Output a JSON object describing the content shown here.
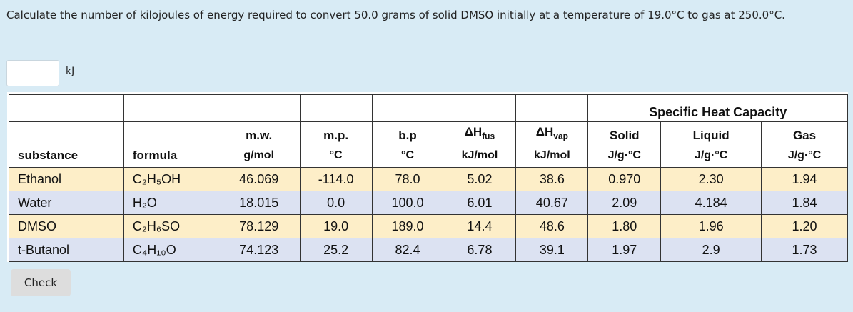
{
  "question": "Calculate the number of kilojoules of energy required to convert 50.0 grams of solid DMSO initially at a temperature of 19.0°C to gas at 250.0°C.",
  "answer_unit": "kJ",
  "table": {
    "group_header": "Specific Heat Capacity",
    "columns": [
      {
        "label": "substance"
      },
      {
        "label": "formula"
      },
      {
        "label": "m.w.",
        "unit": "g/mol"
      },
      {
        "label": "m.p.",
        "unit": "°C"
      },
      {
        "label": "b.p",
        "unit": "°C"
      },
      {
        "label": "ΔH",
        "sub": "fus",
        "unit": "kJ/mol"
      },
      {
        "label": "ΔH",
        "sub": "vap",
        "unit": "kJ/mol"
      },
      {
        "label": "Solid",
        "unit": "J/g·°C"
      },
      {
        "label": "Liquid",
        "unit": "J/g·°C"
      },
      {
        "label": "Gas",
        "unit": "J/g·°C"
      }
    ],
    "rows": [
      [
        "Ethanol",
        "C₂H₅OH",
        "46.069",
        "-114.0",
        "78.0",
        "5.02",
        "38.6",
        "0.970",
        "2.30",
        "1.94"
      ],
      [
        "Water",
        "H₂O",
        "18.015",
        "0.0",
        "100.0",
        "6.01",
        "40.67",
        "2.09",
        "4.184",
        "1.84"
      ],
      [
        "DMSO",
        "C₂H₆SO",
        "78.129",
        "19.0",
        "189.0",
        "14.4",
        "48.6",
        "1.80",
        "1.96",
        "1.20"
      ],
      [
        "t-Butanol",
        "C₄H₁₀O",
        "74.123",
        "25.2",
        "82.4",
        "6.78",
        "39.1",
        "1.97",
        "2.9",
        "1.73"
      ]
    ]
  },
  "check_button": "Check"
}
